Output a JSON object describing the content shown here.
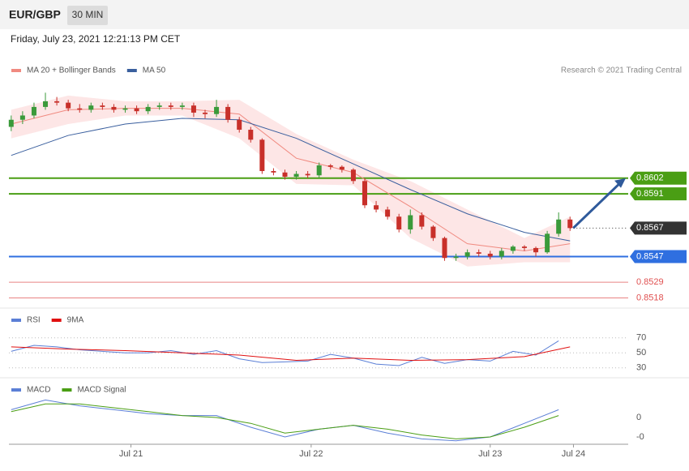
{
  "chart_data": {
    "type": "candlestick",
    "title": "EUR/GBP",
    "timeframe": "30 MIN",
    "subtitle": "Friday, July 23, 2021 12:21:13 PM CET",
    "source": "Research © 2021 Trading Central",
    "open": [
      0.8638,
      0.8643,
      0.8646,
      0.8652,
      0.8656,
      0.8655,
      0.8651,
      0.865,
      0.8653,
      0.8652,
      0.865,
      0.8651,
      0.8649,
      0.8652,
      0.8653,
      0.8652,
      0.8653,
      0.8648,
      0.8647,
      0.8652,
      0.8643,
      0.8636,
      0.8629,
      0.8607,
      0.8606,
      0.8603,
      0.8605,
      0.8604,
      0.8611,
      0.861,
      0.8608,
      0.86,
      0.8583,
      0.858,
      0.8575,
      0.8566,
      0.8576,
      0.8568,
      0.856,
      0.8546,
      0.8547,
      0.855,
      0.8549,
      0.8547,
      0.8551,
      0.8554,
      0.8553,
      0.855,
      0.8563,
      0.8573
    ],
    "high": [
      0.8646,
      0.8649,
      0.8655,
      0.8662,
      0.8659,
      0.8657,
      0.8654,
      0.8655,
      0.8655,
      0.8654,
      0.8653,
      0.8653,
      0.8654,
      0.8655,
      0.8655,
      0.8655,
      0.8655,
      0.865,
      0.8657,
      0.8654,
      0.8645,
      0.8638,
      0.863,
      0.8609,
      0.8608,
      0.8607,
      0.8607,
      0.8613,
      0.8612,
      0.8611,
      0.8609,
      0.8602,
      0.8586,
      0.8582,
      0.8577,
      0.858,
      0.8578,
      0.8569,
      0.8561,
      0.8549,
      0.8552,
      0.8552,
      0.8551,
      0.8553,
      0.8555,
      0.8555,
      0.8554,
      0.8565,
      0.8578,
      0.8575
    ],
    "low": [
      0.8635,
      0.864,
      0.8644,
      0.865,
      0.8653,
      0.8649,
      0.8648,
      0.8648,
      0.865,
      0.8648,
      0.8648,
      0.8647,
      0.8647,
      0.865,
      0.865,
      0.865,
      0.8645,
      0.8644,
      0.8645,
      0.8641,
      0.8634,
      0.8627,
      0.8605,
      0.8604,
      0.8601,
      0.8601,
      0.8602,
      0.8602,
      0.8608,
      0.8606,
      0.8598,
      0.8581,
      0.8578,
      0.8573,
      0.8564,
      0.8563,
      0.8566,
      0.8558,
      0.8544,
      0.8544,
      0.8545,
      0.8547,
      0.8545,
      0.8545,
      0.8549,
      0.8551,
      0.8547,
      0.8549,
      0.8561,
      0.8565
    ],
    "close": [
      0.8643,
      0.8646,
      0.8652,
      0.8656,
      0.8655,
      0.8651,
      0.865,
      0.8653,
      0.8652,
      0.865,
      0.8651,
      0.8649,
      0.8652,
      0.8653,
      0.8652,
      0.8653,
      0.8648,
      0.8647,
      0.8652,
      0.8643,
      0.8636,
      0.8629,
      0.8607,
      0.8606,
      0.8603,
      0.8605,
      0.8604,
      0.8611,
      0.861,
      0.8608,
      0.86,
      0.8583,
      0.858,
      0.8575,
      0.8566,
      0.8576,
      0.8568,
      0.856,
      0.8546,
      0.8547,
      0.855,
      0.8549,
      0.8547,
      0.8551,
      0.8554,
      0.8553,
      0.855,
      0.8563,
      0.8573,
      0.8567
    ],
    "up_color": "#3a9a3a",
    "down_color": "#c8302a",
    "xlim": [
      -0.2,
      54.1
    ],
    "ylim": [
      0.8512,
      0.8673
    ],
    "xticks": [
      {
        "value": 10.5,
        "label": "Jul 21"
      },
      {
        "value": 26.3,
        "label": "Jul 22"
      },
      {
        "value": 42,
        "label": "Jul 23"
      },
      {
        "value": 49.3,
        "label": "Jul 24"
      }
    ],
    "overlays": [
      {
        "name": "MA 20 + Bollinger Bands",
        "color": "#f08a80",
        "band_color": "#fde0e0",
        "x": [
          0,
          5,
          10,
          15,
          20,
          25,
          30,
          35,
          40,
          45,
          49
        ],
        "values": [
          0.864,
          0.865,
          0.8651,
          0.8651,
          0.8647,
          0.8616,
          0.8606,
          0.8582,
          0.8556,
          0.8551,
          0.8556
        ],
        "upper": [
          0.865,
          0.866,
          0.8656,
          0.8656,
          0.8657,
          0.8633,
          0.8615,
          0.86,
          0.858,
          0.856,
          0.8575
        ],
        "lower": [
          0.863,
          0.864,
          0.8646,
          0.8646,
          0.863,
          0.8598,
          0.8597,
          0.856,
          0.854,
          0.8543,
          0.8543
        ]
      },
      {
        "name": "MA 50",
        "color": "#3a5f9e",
        "x": [
          0,
          5,
          10,
          15,
          20,
          25,
          30,
          35,
          40,
          45,
          49
        ],
        "values": [
          0.8618,
          0.8632,
          0.864,
          0.8644,
          0.8643,
          0.863,
          0.8612,
          0.8594,
          0.8577,
          0.8564,
          0.8558
        ]
      }
    ],
    "levels": [
      {
        "value": 0.8602,
        "color": "#4a9e14",
        "style": "box"
      },
      {
        "value": 0.8591,
        "color": "#4a9e14",
        "style": "box"
      },
      {
        "value": 0.8567,
        "color": "#333333",
        "style": "current"
      },
      {
        "value": 0.8547,
        "color": "#2f6fe0",
        "style": "box"
      },
      {
        "value": 0.8529,
        "color": "#e05050",
        "style": "text"
      },
      {
        "value": 0.8518,
        "color": "#e05050",
        "style": "text"
      }
    ],
    "arrow_color": "#2f5a9b",
    "rsi": {
      "ylim": [
        20,
        100
      ],
      "yticks": [
        70,
        50,
        30
      ],
      "series": [
        {
          "name": "RSI",
          "color": "#5b7fd6",
          "x": [
            0,
            2,
            4,
            6,
            8,
            10,
            12,
            14,
            16,
            18,
            20,
            22,
            24,
            26,
            28,
            30,
            32,
            34,
            36,
            38,
            40,
            42,
            44,
            46,
            48
          ],
          "values": [
            52,
            60,
            58,
            54,
            52,
            50,
            50,
            53,
            48,
            53,
            42,
            37,
            38,
            39,
            48,
            43,
            35,
            33,
            44,
            36,
            41,
            39,
            52,
            47,
            66
          ]
        },
        {
          "name": "9MA",
          "color": "#e01010",
          "x": [
            0,
            5,
            10,
            15,
            20,
            25,
            30,
            35,
            40,
            45,
            49
          ],
          "values": [
            58,
            55,
            53,
            50,
            47,
            40,
            43,
            40,
            41,
            45,
            58
          ]
        }
      ]
    },
    "macd": {
      "ylim": [
        -0.001375,
        0.001875
      ],
      "yticks": [
        0,
        {
          "value": -0.001,
          "label": "-0"
        }
      ],
      "series": [
        {
          "name": "MACD",
          "color": "#5b7fd6",
          "x": [
            0,
            3,
            6,
            9,
            12,
            15,
            18,
            21,
            24,
            27,
            30,
            33,
            36,
            39,
            42,
            45,
            48
          ],
          "values": [
            0.0004,
            0.0009,
            0.0006,
            0.0004,
            0.0002,
            0.0001,
            0.0001,
            -0.0005,
            -0.001,
            -0.0006,
            -0.0004,
            -0.0008,
            -0.0011,
            -0.0012,
            -0.001,
            -0.0003,
            0.0004
          ]
        },
        {
          "name": "MACD Signal",
          "color": "#4a9e14",
          "x": [
            0,
            3,
            6,
            9,
            12,
            15,
            18,
            21,
            24,
            27,
            30,
            33,
            36,
            39,
            42,
            45,
            48
          ],
          "values": [
            0.0003,
            0.0007,
            0.0007,
            0.0005,
            0.0003,
            0.0001,
            0,
            -0.0003,
            -0.0008,
            -0.0006,
            -0.0004,
            -0.0006,
            -0.0009,
            -0.0011,
            -0.001,
            -0.0005,
            0.0001
          ]
        }
      ]
    }
  }
}
